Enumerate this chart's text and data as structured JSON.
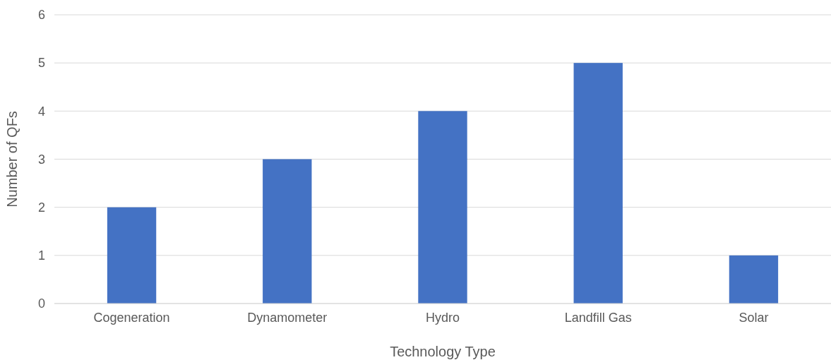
{
  "chart_data": {
    "type": "bar",
    "xlabel": "Technology Type",
    "ylabel": "Number of QFs",
    "categories": [
      "Cogeneration",
      "Dynamometer",
      "Hydro",
      "Landfill Gas",
      "Solar"
    ],
    "values": [
      2,
      3,
      4,
      5,
      1
    ],
    "color": "#4472c4",
    "ylim": [
      0,
      6
    ],
    "yticks": [
      0,
      1,
      2,
      3,
      4,
      5,
      6
    ],
    "grid": "y"
  }
}
